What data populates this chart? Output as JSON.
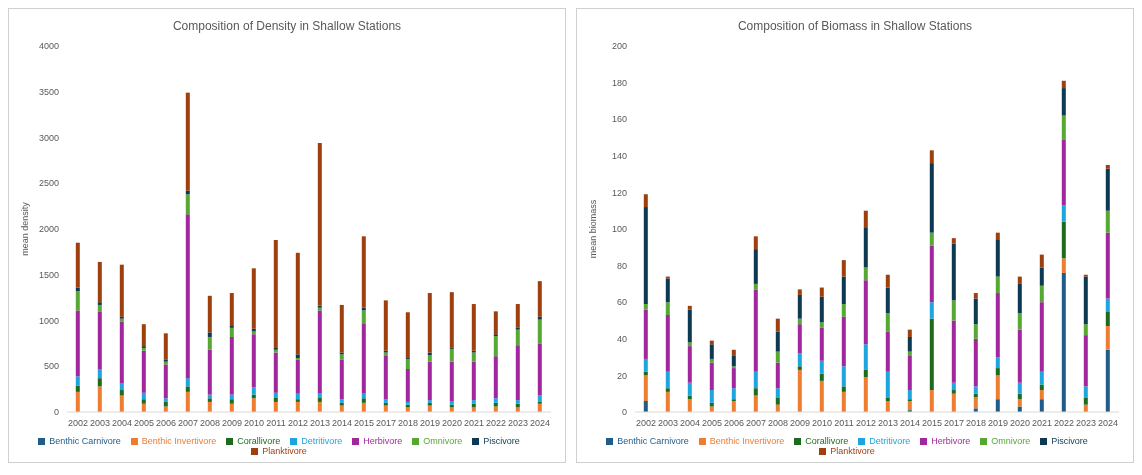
{
  "chart_data": [
    {
      "type": "bar",
      "title": "Composition of Density in Shallow Stations",
      "ylabel": "mean density",
      "stacked": true,
      "grid": false,
      "legend": "bottom",
      "categories": [
        "2002",
        "2003",
        "2004",
        "2005",
        "2006",
        "2007",
        "2008",
        "2009",
        "2010",
        "2011",
        "2012",
        "2013",
        "2014",
        "2015",
        "2017",
        "2018",
        "2019",
        "2020",
        "2021",
        "2022",
        "2023",
        "2024"
      ],
      "ylim": [
        0,
        4000
      ],
      "yticks": [
        0,
        500,
        1000,
        1500,
        2000,
        2500,
        3000,
        3500,
        4000
      ],
      "series": [
        {
          "name": "Benthic Carnivore",
          "color": "#1f5c8a",
          "values": [
            0,
            0,
            0,
            0,
            0,
            0,
            0,
            0,
            0,
            0,
            0,
            0,
            0,
            0,
            0,
            0,
            0,
            0,
            0,
            0,
            0,
            0
          ]
        },
        {
          "name": "Benthic Invertivore",
          "color": "#ed7d31",
          "values": [
            220,
            280,
            180,
            90,
            60,
            220,
            110,
            90,
            150,
            110,
            110,
            110,
            70,
            100,
            70,
            50,
            70,
            50,
            50,
            60,
            50,
            90
          ]
        },
        {
          "name": "Corallivore",
          "color": "#1e6b1e",
          "values": [
            70,
            90,
            60,
            50,
            50,
            60,
            40,
            50,
            40,
            50,
            30,
            50,
            30,
            50,
            30,
            30,
            30,
            30,
            40,
            40,
            40,
            20
          ]
        },
        {
          "name": "Detritivore",
          "color": "#1fa5de",
          "values": [
            100,
            100,
            70,
            70,
            40,
            90,
            40,
            50,
            80,
            50,
            60,
            40,
            40,
            50,
            40,
            30,
            30,
            40,
            40,
            50,
            40,
            70
          ]
        },
        {
          "name": "Herbivore",
          "color": "#a0289c",
          "values": [
            720,
            630,
            680,
            460,
            370,
            1790,
            490,
            630,
            580,
            440,
            370,
            910,
            430,
            770,
            480,
            360,
            420,
            430,
            420,
            460,
            600,
            570
          ]
        },
        {
          "name": "Omnivore",
          "color": "#56a832",
          "values": [
            210,
            70,
            30,
            30,
            30,
            220,
            140,
            100,
            30,
            30,
            20,
            30,
            60,
            140,
            30,
            110,
            70,
            140,
            100,
            220,
            170,
            260
          ]
        },
        {
          "name": "Piscivore",
          "color": "#0d3a52",
          "values": [
            40,
            30,
            20,
            20,
            20,
            40,
            50,
            20,
            30,
            20,
            40,
            20,
            20,
            30,
            20,
            10,
            30,
            10,
            20,
            20,
            20,
            30
          ]
        },
        {
          "name": "Planktivore",
          "color": "#9e3f0e",
          "values": [
            490,
            440,
            570,
            240,
            290,
            1070,
            400,
            360,
            660,
            1180,
            1110,
            1780,
            520,
            780,
            550,
            500,
            650,
            610,
            510,
            250,
            260,
            390
          ]
        }
      ]
    },
    {
      "type": "bar",
      "title": "Composition of Biomass in Shallow Stations",
      "ylabel": "mean biomass",
      "stacked": true,
      "grid": false,
      "legend": "bottom",
      "categories": [
        "2002",
        "2003",
        "2004",
        "2005",
        "2006",
        "2007",
        "2008",
        "2009",
        "2010",
        "2011",
        "2012",
        "2013",
        "2014",
        "2015",
        "2017",
        "2018",
        "2019",
        "2020",
        "2021",
        "2022",
        "2023",
        "2024"
      ],
      "ylim": [
        0,
        200
      ],
      "yticks": [
        0,
        20,
        40,
        60,
        80,
        100,
        120,
        140,
        160,
        180,
        200
      ],
      "series": [
        {
          "name": "Benthic Carnivore",
          "color": "#1f5c8a",
          "values": [
            6,
            0,
            0,
            0,
            0,
            0,
            0,
            0,
            0,
            0,
            0,
            0,
            1,
            0,
            0,
            2,
            7,
            3,
            7,
            76,
            0,
            34
          ]
        },
        {
          "name": "Benthic Invertivore",
          "color": "#ed7d31",
          "values": [
            14,
            11,
            7,
            3,
            6,
            9,
            4,
            23,
            17,
            11,
            19,
            6,
            5,
            12,
            10,
            6,
            13,
            4,
            5,
            8,
            4,
            13
          ]
        },
        {
          "name": "Corallivore",
          "color": "#1e6b1e",
          "values": [
            2,
            2,
            2,
            2,
            1,
            4,
            4,
            2,
            4,
            3,
            4,
            2,
            1,
            39,
            2,
            2,
            4,
            3,
            3,
            20,
            4,
            8
          ]
        },
        {
          "name": "Detritivore",
          "color": "#1fa5de",
          "values": [
            7,
            9,
            7,
            7,
            6,
            9,
            5,
            7,
            7,
            11,
            14,
            14,
            5,
            9,
            4,
            4,
            6,
            6,
            7,
            9,
            6,
            7
          ]
        },
        {
          "name": "Herbivore",
          "color": "#a0289c",
          "values": [
            27,
            31,
            20,
            15,
            11,
            45,
            14,
            16,
            18,
            27,
            35,
            22,
            19,
            31,
            34,
            26,
            35,
            29,
            38,
            36,
            28,
            36
          ]
        },
        {
          "name": "Omnivore",
          "color": "#56a832",
          "values": [
            3,
            7,
            2,
            2,
            1,
            3,
            6,
            3,
            3,
            7,
            7,
            10,
            2,
            7,
            11,
            8,
            9,
            9,
            9,
            13,
            6,
            12
          ]
        },
        {
          "name": "Piscivore",
          "color": "#0d3a52",
          "values": [
            53,
            13,
            18,
            8,
            6,
            19,
            11,
            13,
            14,
            15,
            22,
            14,
            8,
            38,
            31,
            14,
            20,
            16,
            10,
            15,
            26,
            23
          ]
        },
        {
          "name": "Planktivore",
          "color": "#9e3f0e",
          "values": [
            7,
            1,
            2,
            2,
            3,
            7,
            7,
            3,
            5,
            9,
            9,
            7,
            4,
            7,
            3,
            3,
            4,
            4,
            7,
            4,
            1,
            2
          ]
        }
      ]
    }
  ]
}
